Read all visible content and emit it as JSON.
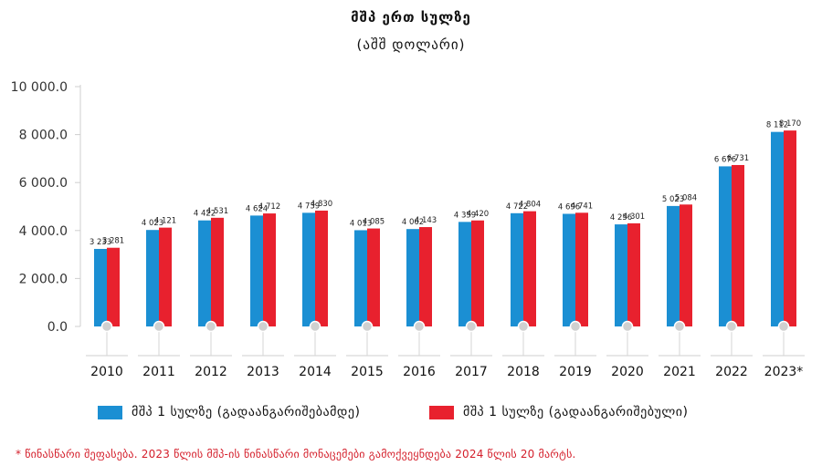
{
  "chart_data": {
    "type": "bar",
    "title": "მშპ ერთ სულზე",
    "subtitle": "(აშშ დოლარი)",
    "categories": [
      "2010",
      "2011",
      "2012",
      "2013",
      "2014",
      "2015",
      "2016",
      "2017",
      "2018",
      "2019",
      "2020",
      "2021",
      "2022",
      "2023*"
    ],
    "series": [
      {
        "name": "მშპ 1 სულზე (გადაანგარიშებამდე)",
        "color": "#1b8fd3",
        "values": [
          3233,
          4023,
          4422,
          4624,
          4739,
          4013,
          4062,
          4359,
          4722,
          4696,
          4256,
          5023,
          6676,
          8112
        ],
        "labels": [
          "3 233",
          "4 023",
          "4 422",
          "4 624",
          "4 739",
          "4 013",
          "4 062",
          "4 359",
          "4 722",
          "4 696",
          "4 256",
          "5 023",
          "6 676",
          "8 112"
        ]
      },
      {
        "name": "მშპ 1 სულზე (გადაანგარიშებული)",
        "color": "#e8212e",
        "values": [
          3281,
          4121,
          4531,
          4712,
          4830,
          4085,
          4143,
          4420,
          4804,
          4741,
          4301,
          5084,
          6731,
          8170
        ],
        "labels": [
          "3 281",
          "4 121",
          "4 531",
          "4 712",
          "4 830",
          "4 085",
          "4 143",
          "4 420",
          "4 804",
          "4 741",
          "4 301",
          "5 084",
          "6 731",
          "8 170"
        ]
      }
    ],
    "y_ticks": [
      0,
      2000,
      4000,
      6000,
      8000,
      10000
    ],
    "y_tick_labels": [
      "0.0",
      "2 000.0",
      "4 000.0",
      "6 000.0",
      "8 000.0",
      "10 000.0"
    ],
    "ylim": [
      0,
      10000
    ],
    "grid": false,
    "legend_position": "bottom"
  },
  "footnote": "* წინასწარი შეფასება. 2023 წლის მშპ-ის წინასწარი მონაცემები გამოქვეყნდება 2024 წლის 20 მარტს."
}
